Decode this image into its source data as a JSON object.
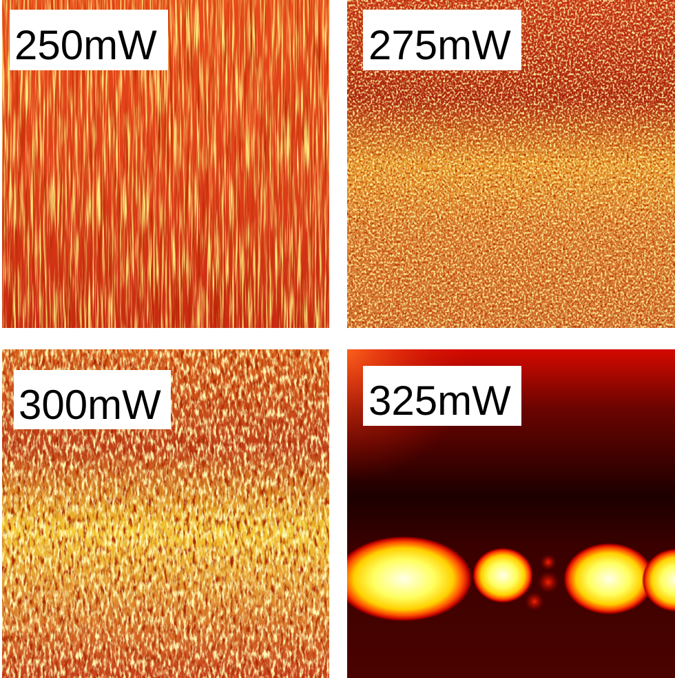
{
  "panels": [
    {
      "label": "250mW"
    },
    {
      "label": "275mW"
    },
    {
      "label": "300mW"
    },
    {
      "label": "325mW"
    }
  ]
}
